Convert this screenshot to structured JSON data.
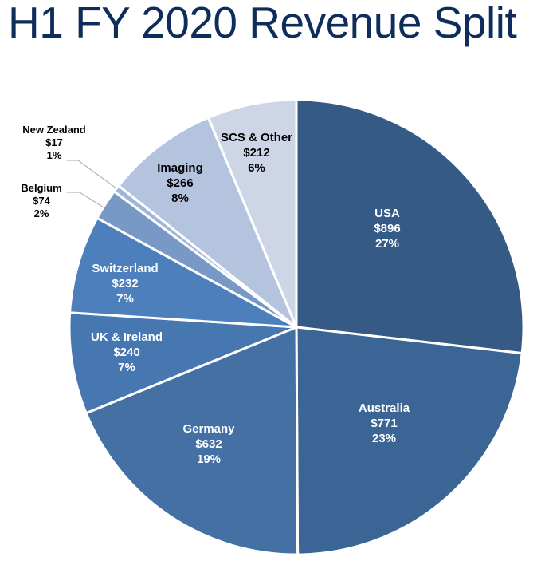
{
  "page": {
    "title": "H1 FY 2020 Revenue Split"
  },
  "chart_data": {
    "type": "pie",
    "title": "H1 FY 2020 Revenue Split",
    "start_angle": "12 o'clock",
    "direction": "clockwise",
    "slices": [
      {
        "label": "USA",
        "value": 896,
        "value_label": "$896",
        "percent_label": "27%",
        "color": "#355a86",
        "text_color": "#ffffff",
        "label_placement": "inside"
      },
      {
        "label": "Australia",
        "value": 771,
        "value_label": "$771",
        "percent_label": "23%",
        "color": "#3b6594",
        "text_color": "#ffffff",
        "label_placement": "inside"
      },
      {
        "label": "Germany",
        "value": 632,
        "value_label": "$632",
        "percent_label": "19%",
        "color": "#4470a3",
        "text_color": "#ffffff",
        "label_placement": "inside"
      },
      {
        "label": "UK & Ireland",
        "value": 240,
        "value_label": "$240",
        "percent_label": "7%",
        "color": "#4677b0",
        "text_color": "#ffffff",
        "label_placement": "inside"
      },
      {
        "label": "Switzerland",
        "value": 232,
        "value_label": "$232",
        "percent_label": "7%",
        "color": "#4d7fbd",
        "text_color": "#ffffff",
        "label_placement": "inside"
      },
      {
        "label": "Belgium",
        "value": 74,
        "value_label": "$74",
        "percent_label": "2%",
        "color": "#7898c6",
        "text_color": "#000000",
        "label_placement": "outside"
      },
      {
        "label": "New Zealand",
        "value": 17,
        "value_label": "$17",
        "percent_label": "1%",
        "color": "#9fb6d8",
        "text_color": "#000000",
        "label_placement": "outside"
      },
      {
        "label": "Imaging",
        "value": 266,
        "value_label": "$266",
        "percent_label": "8%",
        "color": "#b4c4df",
        "text_color": "#000000",
        "label_placement": "inside"
      },
      {
        "label": "SCS & Other",
        "value": 212,
        "value_label": "$212",
        "percent_label": "6%",
        "color": "#cdd5e6",
        "text_color": "#000000",
        "label_placement": "inside"
      }
    ],
    "legend": "none"
  }
}
